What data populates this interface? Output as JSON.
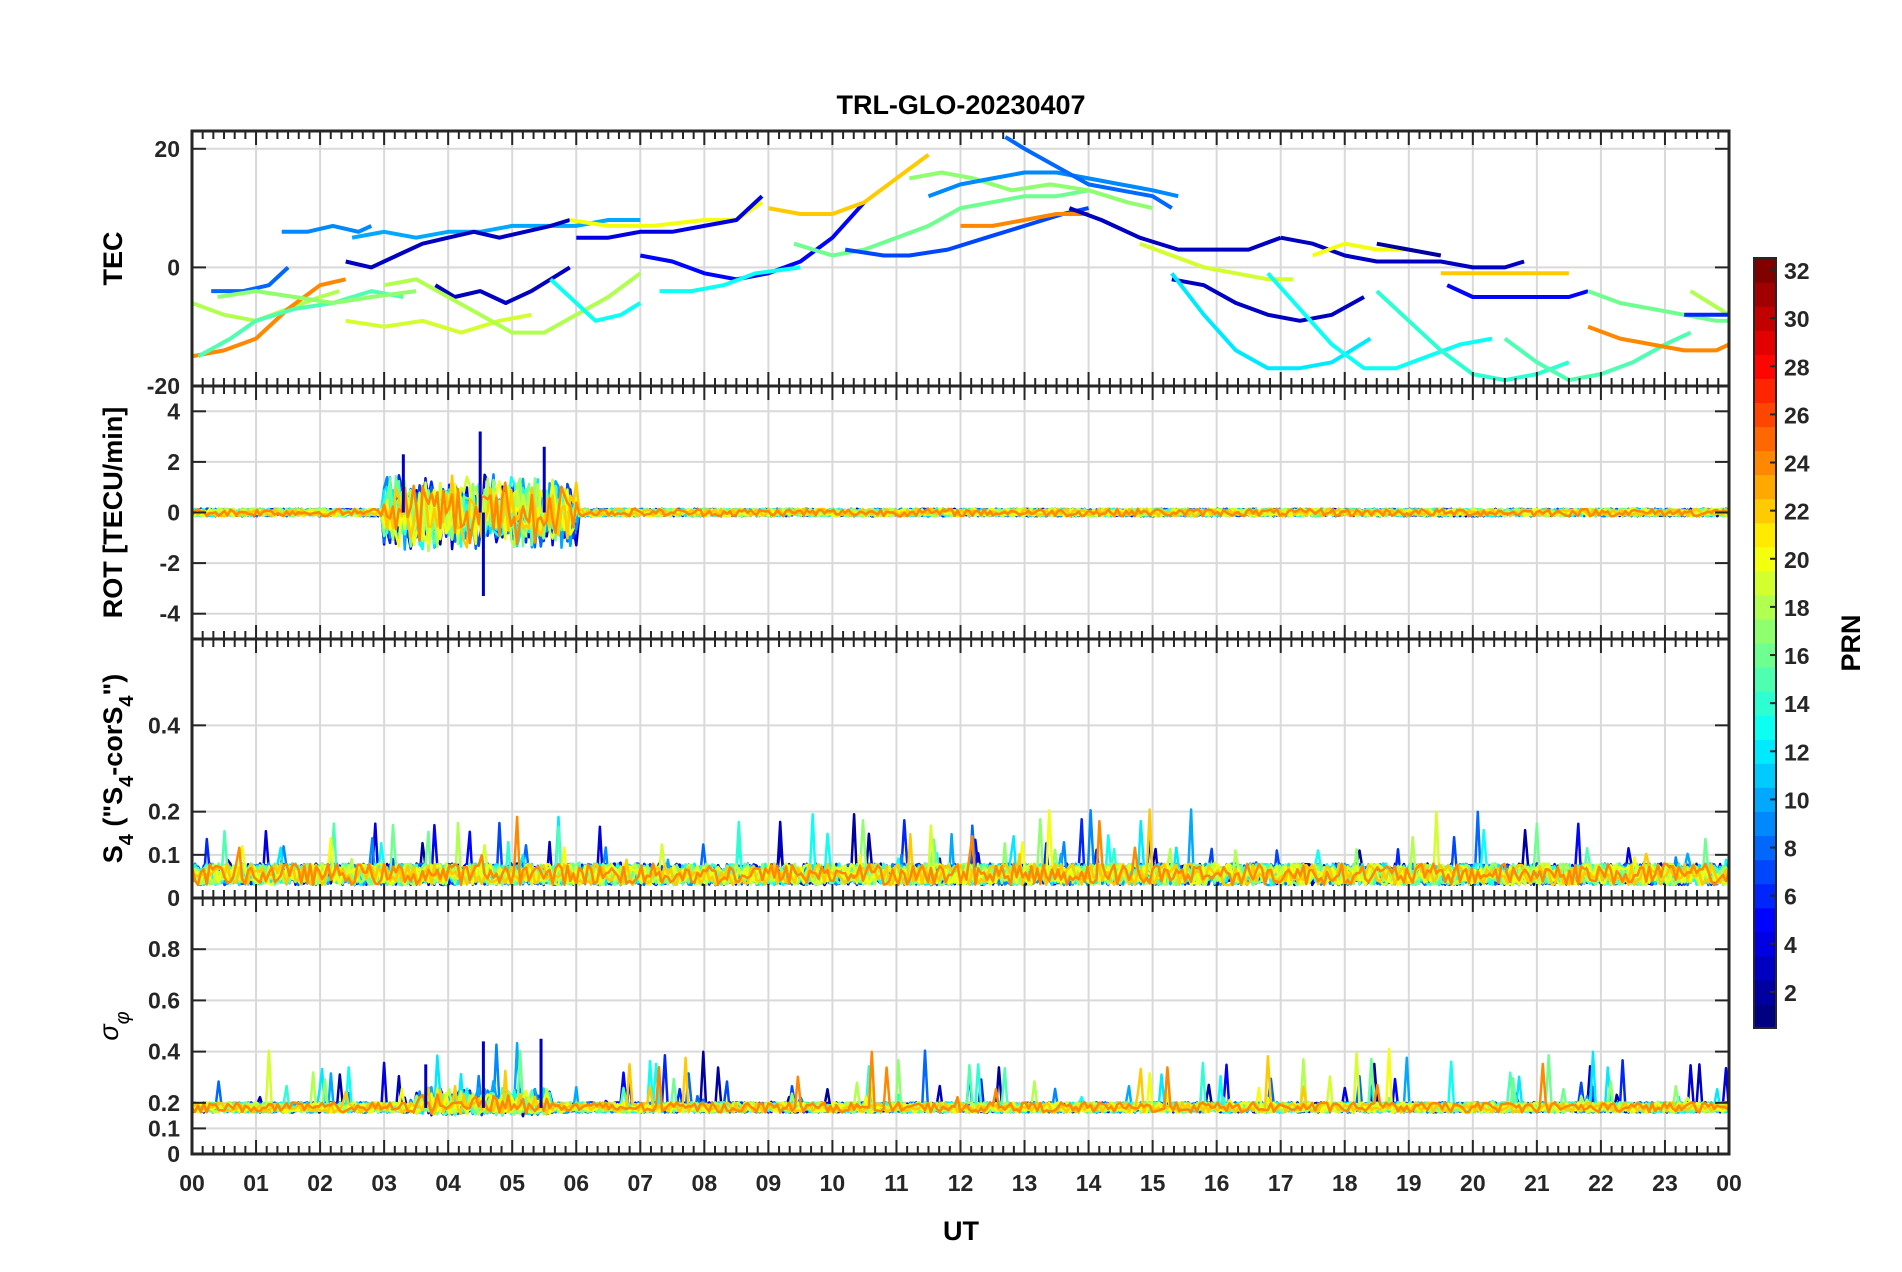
{
  "chart_data": {
    "type": "line",
    "title": "TRL-GLO-20230407",
    "xlabel": "UT",
    "xlim": [
      0,
      24
    ],
    "x_tick_labels": [
      "00",
      "01",
      "02",
      "03",
      "04",
      "05",
      "06",
      "07",
      "08",
      "09",
      "10",
      "11",
      "12",
      "13",
      "14",
      "15",
      "16",
      "17",
      "18",
      "19",
      "20",
      "21",
      "22",
      "23",
      "00"
    ],
    "panels": [
      {
        "id": "tec",
        "ylabel": "TEC",
        "ylim": [
          -20,
          23
        ],
        "ticks": [
          -20,
          0,
          20
        ],
        "tick_labels": [
          "-20",
          "0",
          "20"
        ],
        "grid": true,
        "series": [
          {
            "prn": 18,
            "x": [
              0.0,
              0.5,
              1.0,
              1.5,
              2.0,
              2.3
            ],
            "y": [
              -6,
              -8,
              -9,
              -7,
              -5,
              -4
            ]
          },
          {
            "prn": 24,
            "x": [
              0.0,
              0.5,
              1.0,
              1.5,
              2.0,
              2.4
            ],
            "y": [
              -15,
              -14,
              -12,
              -7,
              -3,
              -2
            ]
          },
          {
            "prn": 8,
            "x": [
              0.3,
              0.8,
              1.2,
              1.5
            ],
            "y": [
              -4,
              -4,
              -3,
              0
            ]
          },
          {
            "prn": 15,
            "x": [
              0.1,
              0.6,
              1.0,
              1.6,
              2.2,
              2.8,
              3.3
            ],
            "y": [
              -15,
              -12,
              -9,
              -7,
              -6,
              -4,
              -5
            ]
          },
          {
            "prn": 17,
            "x": [
              0.4,
              1.0,
              1.6,
              2.2,
              2.8,
              3.5
            ],
            "y": [
              -5,
              -4,
              -5,
              -6,
              -5,
              -4
            ]
          },
          {
            "prn": 9,
            "x": [
              1.4,
              1.8,
              2.2,
              2.6,
              2.8
            ],
            "y": [
              6,
              6,
              7,
              6,
              7
            ]
          },
          {
            "prn": 10,
            "x": [
              2.5,
              3.0,
              3.5,
              4.0,
              4.5,
              5.0,
              5.5,
              6.0,
              6.5,
              7.0
            ],
            "y": [
              5,
              6,
              5,
              6,
              6,
              7,
              7,
              7,
              8,
              8
            ]
          },
          {
            "prn": 3,
            "x": [
              2.4,
              2.8,
              3.2,
              3.6,
              4.0,
              4.4,
              4.8,
              5.2,
              5.6,
              5.9
            ],
            "y": [
              1,
              0,
              2,
              4,
              5,
              6,
              5,
              6,
              7,
              8
            ]
          },
          {
            "prn": 3,
            "x": [
              3.8,
              4.1,
              4.5,
              4.9,
              5.3,
              5.6,
              5.9
            ],
            "y": [
              -3,
              -5,
              -4,
              -6,
              -4,
              -2,
              0
            ]
          },
          {
            "prn": 19,
            "x": [
              2.4,
              3.0,
              3.6,
              4.2,
              4.8,
              5.3
            ],
            "y": [
              -9,
              -10,
              -9,
              -11,
              -9,
              -8
            ]
          },
          {
            "prn": 18,
            "x": [
              3.0,
              3.5,
              4.0,
              4.5,
              5.0,
              5.5,
              6.0,
              6.5,
              7.0
            ],
            "y": [
              -3,
              -2,
              -5,
              -8,
              -11,
              -11,
              -8,
              -5,
              -1
            ]
          },
          {
            "prn": 13,
            "x": [
              5.6,
              6.0,
              6.3,
              6.7,
              7.0
            ],
            "y": [
              -2,
              -6,
              -9,
              -8,
              -6
            ]
          },
          {
            "prn": 20,
            "x": [
              5.9,
              6.5,
              7.2,
              8.0,
              8.5,
              8.9
            ],
            "y": [
              8,
              7,
              7,
              8,
              8,
              11
            ]
          },
          {
            "prn": 4,
            "x": [
              6.0,
              6.5,
              7.0,
              7.5,
              8.0,
              8.5,
              8.9
            ],
            "y": [
              5,
              5,
              6,
              6,
              7,
              8,
              12
            ]
          },
          {
            "prn": 5,
            "x": [
              7.0,
              7.5,
              8.0,
              8.5,
              9.0,
              9.5,
              10.0,
              10.5
            ],
            "y": [
              2,
              1,
              -1,
              -2,
              -1,
              1,
              5,
              11
            ]
          },
          {
            "prn": 13,
            "x": [
              7.3,
              7.8,
              8.3,
              8.8,
              9.5
            ],
            "y": [
              -4,
              -4,
              -3,
              -1,
              0
            ]
          },
          {
            "prn": 22,
            "x": [
              9.0,
              9.5,
              10.0,
              10.5,
              11.0,
              11.5
            ],
            "y": [
              10,
              9,
              9,
              11,
              15,
              19
            ]
          },
          {
            "prn": 16,
            "x": [
              9.4,
              10.0,
              10.5,
              11.0,
              11.5,
              12.0,
              12.5,
              13.0,
              13.5,
              14.0
            ],
            "y": [
              4,
              2,
              3,
              5,
              7,
              10,
              11,
              12,
              12,
              13
            ]
          },
          {
            "prn": 7,
            "x": [
              10.2,
              10.8,
              11.2,
              11.8,
              12.4,
              13.0,
              13.6,
              14.0
            ],
            "y": [
              3,
              2,
              2,
              3,
              5,
              7,
              9,
              10
            ]
          },
          {
            "prn": 17,
            "x": [
              11.2,
              11.7,
              12.2,
              12.8,
              13.4,
              14.0,
              14.6,
              15.0
            ],
            "y": [
              15,
              16,
              15,
              13,
              14,
              13,
              11,
              10
            ]
          },
          {
            "prn": 9,
            "x": [
              11.5,
              12.0,
              12.5,
              13.0,
              13.5,
              14.0,
              14.5,
              15.0,
              15.4
            ],
            "y": [
              12,
              14,
              15,
              16,
              16,
              15,
              14,
              13,
              12
            ]
          },
          {
            "prn": 8,
            "x": [
              12.7,
              13.0,
              13.5,
              14.0,
              14.5,
              15.0,
              15.3
            ],
            "y": [
              22,
              20,
              17,
              14,
              13,
              12,
              10
            ]
          },
          {
            "prn": 24,
            "x": [
              12.0,
              12.5,
              13.0,
              13.5,
              14.0
            ],
            "y": [
              7,
              7,
              8,
              9,
              9
            ]
          },
          {
            "prn": 3,
            "x": [
              13.7,
              14.2,
              14.8,
              15.4,
              16.0,
              16.5,
              17.0
            ],
            "y": [
              10,
              8,
              5,
              3,
              3,
              3,
              5
            ]
          },
          {
            "prn": 19,
            "x": [
              14.8,
              15.3,
              15.8,
              16.3,
              16.8,
              17.2
            ],
            "y": [
              4,
              2,
              0,
              -1,
              -2,
              -2
            ]
          },
          {
            "prn": 3,
            "x": [
              15.3,
              15.8,
              16.3,
              16.8,
              17.3,
              17.8,
              18.3
            ],
            "y": [
              -2,
              -3,
              -6,
              -8,
              -9,
              -8,
              -5
            ]
          },
          {
            "prn": 12,
            "x": [
              15.3,
              15.8,
              16.3,
              16.8,
              17.3,
              17.8,
              18.4
            ],
            "y": [
              -1,
              -8,
              -14,
              -17,
              -17,
              -16,
              -12
            ]
          },
          {
            "prn": 3,
            "x": [
              17.0,
              17.5,
              18.0,
              18.5,
              19.0,
              19.5,
              20.0,
              20.5,
              20.8
            ],
            "y": [
              5,
              4,
              2,
              1,
              1,
              1,
              0,
              0,
              1
            ]
          },
          {
            "prn": 20,
            "x": [
              17.5,
              18.0,
              18.5,
              19.0
            ],
            "y": [
              2,
              4,
              3,
              3
            ]
          },
          {
            "prn": 2,
            "x": [
              18.5,
              19.0,
              19.5
            ],
            "y": [
              4,
              3,
              2
            ]
          },
          {
            "prn": 13,
            "x": [
              16.8,
              17.3,
              17.8,
              18.3,
              18.8,
              19.3,
              19.8,
              20.3
            ],
            "y": [
              -1,
              -7,
              -13,
              -17,
              -17,
              -15,
              -13,
              -12
            ]
          },
          {
            "prn": 14,
            "x": [
              18.5,
              19.0,
              19.5,
              20.0,
              20.5,
              21.0,
              21.5
            ],
            "y": [
              -4,
              -9,
              -14,
              -18,
              -19,
              -18,
              -16
            ]
          },
          {
            "prn": 22,
            "x": [
              19.5,
              20.0,
              20.5,
              21.0,
              21.5
            ],
            "y": [
              -1,
              -1,
              -1,
              -1,
              -1
            ]
          },
          {
            "prn": 5,
            "x": [
              19.6,
              20.0,
              20.5,
              21.0,
              21.5,
              21.8
            ],
            "y": [
              -3,
              -5,
              -5,
              -5,
              -5,
              -4
            ]
          },
          {
            "prn": 15,
            "x": [
              20.5,
              21.0,
              21.5,
              22.0,
              22.5,
              23.0,
              23.4
            ],
            "y": [
              -12,
              -16,
              -19,
              -18,
              -16,
              -13,
              -11
            ]
          },
          {
            "prn": 24,
            "x": [
              21.8,
              22.3,
              22.8,
              23.3,
              23.8,
              24.0
            ],
            "y": [
              -10,
              -12,
              -13,
              -14,
              -14,
              -13
            ]
          },
          {
            "prn": 16,
            "x": [
              21.8,
              22.3,
              22.8,
              23.3,
              23.8,
              24.0
            ],
            "y": [
              -4,
              -6,
              -7,
              -8,
              -9,
              -9
            ]
          },
          {
            "prn": 18,
            "x": [
              23.4,
              23.7,
              24.0
            ],
            "y": [
              -4,
              -6,
              -8
            ]
          },
          {
            "prn": 6,
            "x": [
              23.3,
              23.7,
              24.0
            ],
            "y": [
              -8,
              -8,
              -8
            ]
          }
        ]
      },
      {
        "id": "rot",
        "ylabel": "ROT [TECU/min]",
        "ylim": [
          -5,
          5
        ],
        "ticks": [
          -4,
          -2,
          0,
          2,
          4
        ],
        "tick_labels": [
          "-4",
          "-2",
          "0",
          "2",
          "4"
        ],
        "grid": true,
        "noise": {
          "baseline": 0,
          "amplitude": 0.15,
          "active_window": [
            3.0,
            6.0
          ],
          "active_amplitude": 1.6,
          "max": 3.2,
          "min": -3.3
        }
      },
      {
        "id": "s4",
        "ylabel": "S4 (\"S4-corS4\")",
        "ylabel_main": "S",
        "ylabel_sub": "4",
        "ylabel_rest": " (\"S",
        "ylabel_sub2": "4",
        "ylabel_mid": "-corS",
        "ylabel_sub3": "4",
        "ylabel_end": "\")",
        "ylim": [
          0,
          0.6
        ],
        "ticks": [
          0,
          0.1,
          0.2,
          0.4
        ],
        "tick_labels": [
          "0",
          "0.1",
          "0.2",
          "0.4"
        ],
        "grid": true,
        "noise": {
          "baseline": 0.04,
          "amplitude": 0.05,
          "max": 0.22
        }
      },
      {
        "id": "sigma_phi",
        "ylabel": "σ φ",
        "ylabel_main": "σ",
        "ylabel_sub": "φ",
        "ylim": [
          0,
          1
        ],
        "ticks": [
          0,
          0.1,
          0.2,
          0.4,
          0.6,
          0.8
        ],
        "tick_labels": [
          "0",
          "0.1",
          "0.2",
          "0.4",
          "0.6",
          "0.8"
        ],
        "grid": true,
        "noise": {
          "baseline": 0.17,
          "amplitude": 0.04,
          "active_window": [
            3.5,
            5.6
          ],
          "active_amplitude": 0.12,
          "max": 0.45
        }
      }
    ],
    "colorbar": {
      "label": "PRN",
      "colormap": "jet",
      "range": [
        1,
        32
      ],
      "ticks": [
        2,
        4,
        6,
        8,
        10,
        12,
        14,
        16,
        18,
        20,
        22,
        24,
        26,
        28,
        30,
        32
      ],
      "tick_labels": [
        "2",
        "4",
        "6",
        "8",
        "10",
        "12",
        "14",
        "16",
        "18",
        "20",
        "22",
        "24",
        "26",
        "28",
        "30",
        "32"
      ]
    },
    "prns_plotted": [
      2,
      3,
      4,
      5,
      6,
      7,
      8,
      9,
      10,
      12,
      13,
      14,
      15,
      16,
      17,
      18,
      19,
      20,
      22,
      24
    ]
  }
}
